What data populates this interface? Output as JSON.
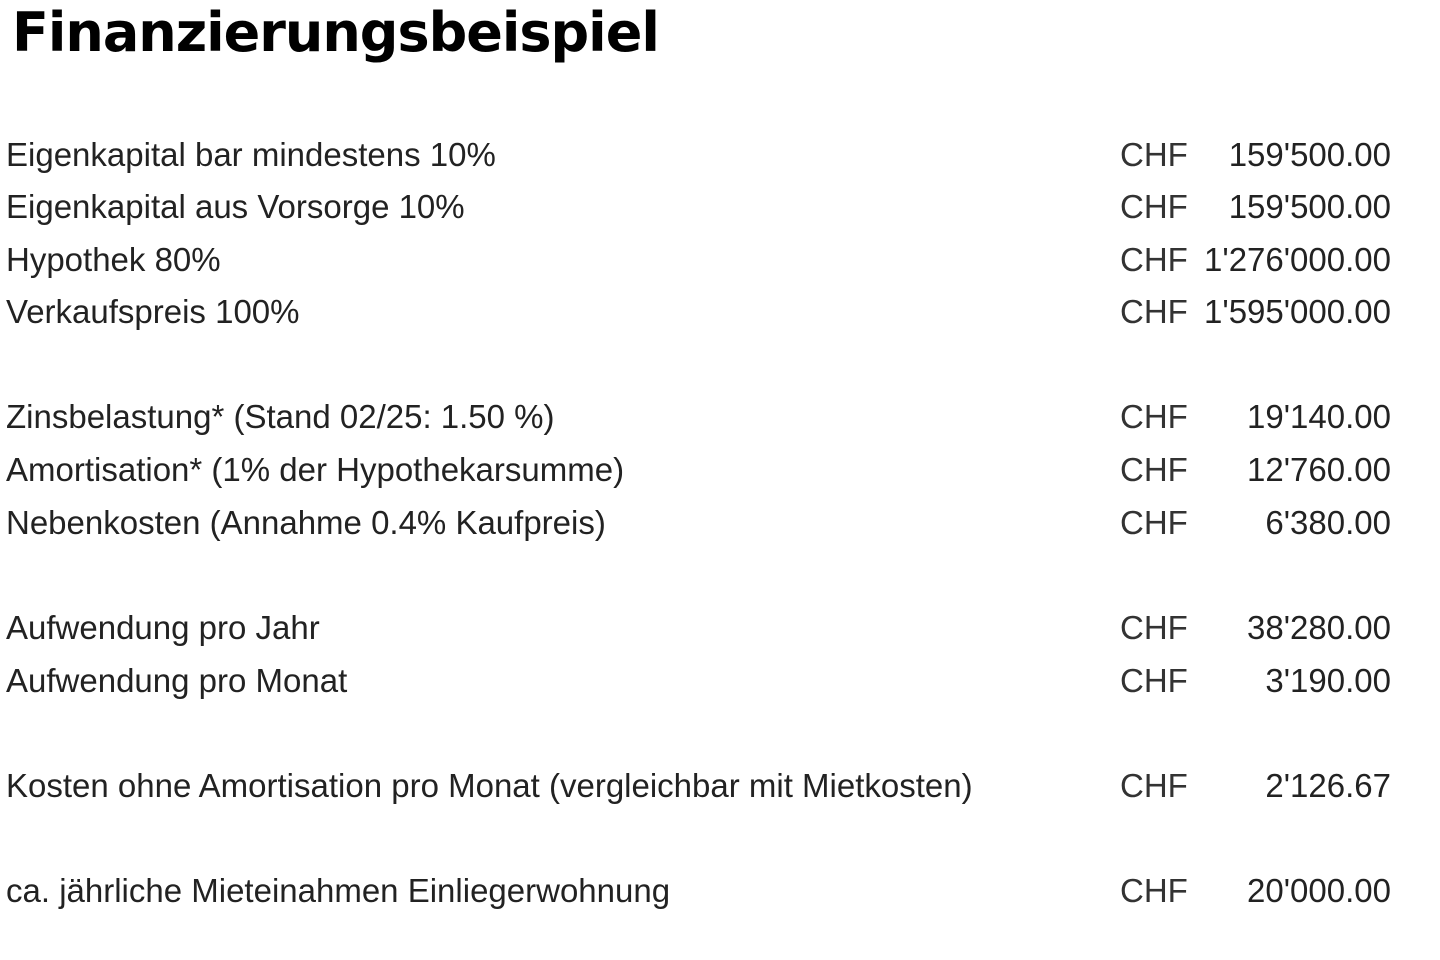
{
  "title": "Finanzierungsbeispiel",
  "rows": [
    {
      "label": "Eigenkapital bar mindestens 10%",
      "currency": "CHF",
      "value": "159'500.00"
    },
    {
      "label": "Eigenkapital aus Vorsorge 10%",
      "currency": "CHF",
      "value": "159'500.00"
    },
    {
      "label": "Hypothek 80%",
      "currency": "CHF",
      "value": "1'276'000.00"
    },
    {
      "label": "Verkaufspreis 100%",
      "currency": "CHF",
      "value": "1'595'000.00"
    },
    {
      "label": "Zinsbelastung* (Stand 02/25: 1.50 %)",
      "currency": "CHF",
      "value": "19'140.00"
    },
    {
      "label": "Amortisation* (1% der Hypothekarsumme)",
      "currency": "CHF",
      "value": "12'760.00"
    },
    {
      "label": "Nebenkosten (Annahme 0.4% Kaufpreis)",
      "currency": "CHF",
      "value": "6'380.00"
    },
    {
      "label": "Aufwendung pro Jahr",
      "currency": "CHF",
      "value": "38'280.00"
    },
    {
      "label": "Aufwendung pro Monat",
      "currency": "CHF",
      "value": "3'190.00"
    },
    {
      "label": "Kosten ohne Amortisation pro Monat (vergleichbar mit Mietkosten)",
      "currency": "CHF",
      "value": "2'126.67"
    },
    {
      "label": "ca. jährliche Mieteinahmen  Einliegerwohnung",
      "currency": "CHF",
      "value": "20'000.00"
    }
  ]
}
